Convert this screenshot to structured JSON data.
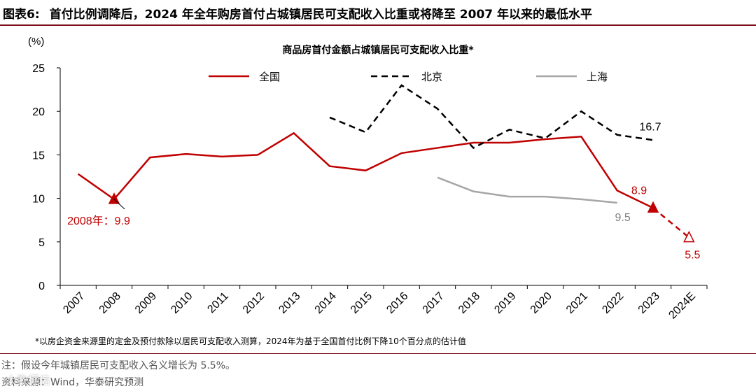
{
  "figure": {
    "label": "图表6:",
    "title": "首付比例调降后，2024 年全年购房首付占城镇居民可支配收入比重或将降至 2007 年以来的最低水平"
  },
  "chart_data": {
    "type": "line",
    "title": "商品房首付金额占城镇居民可支配收入比重*",
    "ylabel": "(%)",
    "xlabel": "",
    "ylim": [
      0,
      25
    ],
    "yticks": [
      0,
      5,
      10,
      15,
      20,
      25
    ],
    "categories": [
      "2007",
      "2008",
      "2009",
      "2010",
      "2011",
      "2012",
      "2013",
      "2014",
      "2015",
      "2016",
      "2017",
      "2018",
      "2019",
      "2020",
      "2021",
      "2022",
      "2023",
      "2024E"
    ],
    "series": [
      {
        "name": "全国",
        "color": "#c00000",
        "dash": "none",
        "values": [
          12.8,
          9.9,
          14.7,
          15.1,
          14.8,
          15.0,
          17.5,
          13.7,
          13.2,
          15.2,
          15.8,
          16.4,
          16.4,
          16.8,
          17.1,
          10.9,
          8.9,
          5.5
        ]
      },
      {
        "name": "北京",
        "color": "#000000",
        "dash": "9,6",
        "values": [
          null,
          null,
          null,
          null,
          null,
          null,
          null,
          19.3,
          17.6,
          23.0,
          20.3,
          15.8,
          17.9,
          16.9,
          20.0,
          17.3,
          16.7,
          null
        ]
      },
      {
        "name": "上海",
        "color": "#a6a6a6",
        "dash": "none",
        "values": [
          null,
          null,
          null,
          null,
          null,
          null,
          null,
          null,
          null,
          null,
          12.4,
          10.8,
          10.2,
          10.2,
          9.9,
          9.5,
          null,
          null
        ]
      }
    ],
    "annotations": [
      {
        "text": "2008年：9.9",
        "x": "2008",
        "value": 9.9,
        "color": "#c00000"
      },
      {
        "text": "8.9",
        "x": "2023",
        "value": 8.9,
        "color": "#c00000"
      },
      {
        "text": "5.5",
        "x": "2024E",
        "value": 5.5,
        "color": "#c00000"
      },
      {
        "text": "16.7",
        "x": "2023",
        "value": 16.7,
        "color": "#000000"
      },
      {
        "text": "9.5",
        "x": "2022",
        "value": 9.5,
        "color": "#808080"
      }
    ]
  },
  "footnote": "*以房企资金来源里的定金及预付款除以居民可支配收入测算，2024年为基于全国首付比例下降10个百分点的估计值",
  "note": "注：假设今年城镇居民可支配收入名义增长为 5.5%。",
  "source": "资料来源：Wind，华泰研究预测",
  "watermark": "大数据信"
}
